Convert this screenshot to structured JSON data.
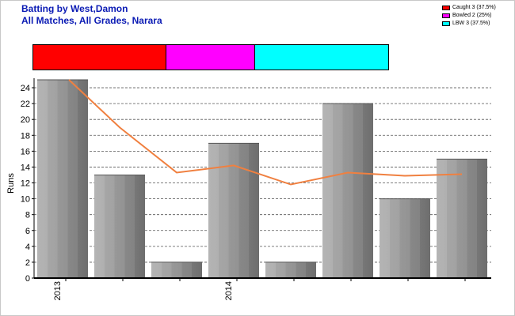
{
  "title": {
    "line1": "Batting by West,Damon",
    "line2": "All Matches, All Grades, Narara"
  },
  "legend": [
    {
      "label": "Caught 3 (37.5%)",
      "color": "#ff0000"
    },
    {
      "label": "Bowled 2 (25%)",
      "color": "#ff00ff"
    },
    {
      "label": "LBW 3 (37.5%)",
      "color": "#00ffff"
    }
  ],
  "dismissals": [
    {
      "name": "Caught",
      "count": 3,
      "percent": 37.5,
      "color": "#ff0000"
    },
    {
      "name": "Bowled",
      "count": 2,
      "percent": 25,
      "color": "#ff00ff"
    },
    {
      "name": "LBW",
      "count": 3,
      "percent": 37.5,
      "color": "#00ffff"
    }
  ],
  "chart_data": {
    "type": "bar",
    "ylabel": "Runs",
    "ylim": [
      0,
      25
    ],
    "yticks": [
      0,
      2,
      4,
      6,
      8,
      10,
      12,
      14,
      16,
      18,
      20,
      22,
      24
    ],
    "grid": true,
    "categories": [
      "2013",
      "",
      "",
      "2014",
      "",
      "",
      "",
      ""
    ],
    "series": [
      {
        "type": "bar",
        "values": [
          25,
          13,
          2,
          17,
          2,
          22,
          10,
          15
        ],
        "color": "#a0a0a0"
      },
      {
        "type": "line",
        "values": [
          25,
          19,
          13.3,
          14.2,
          11.8,
          13.3,
          12.9,
          13.1
        ],
        "color": "#f08040"
      }
    ]
  }
}
